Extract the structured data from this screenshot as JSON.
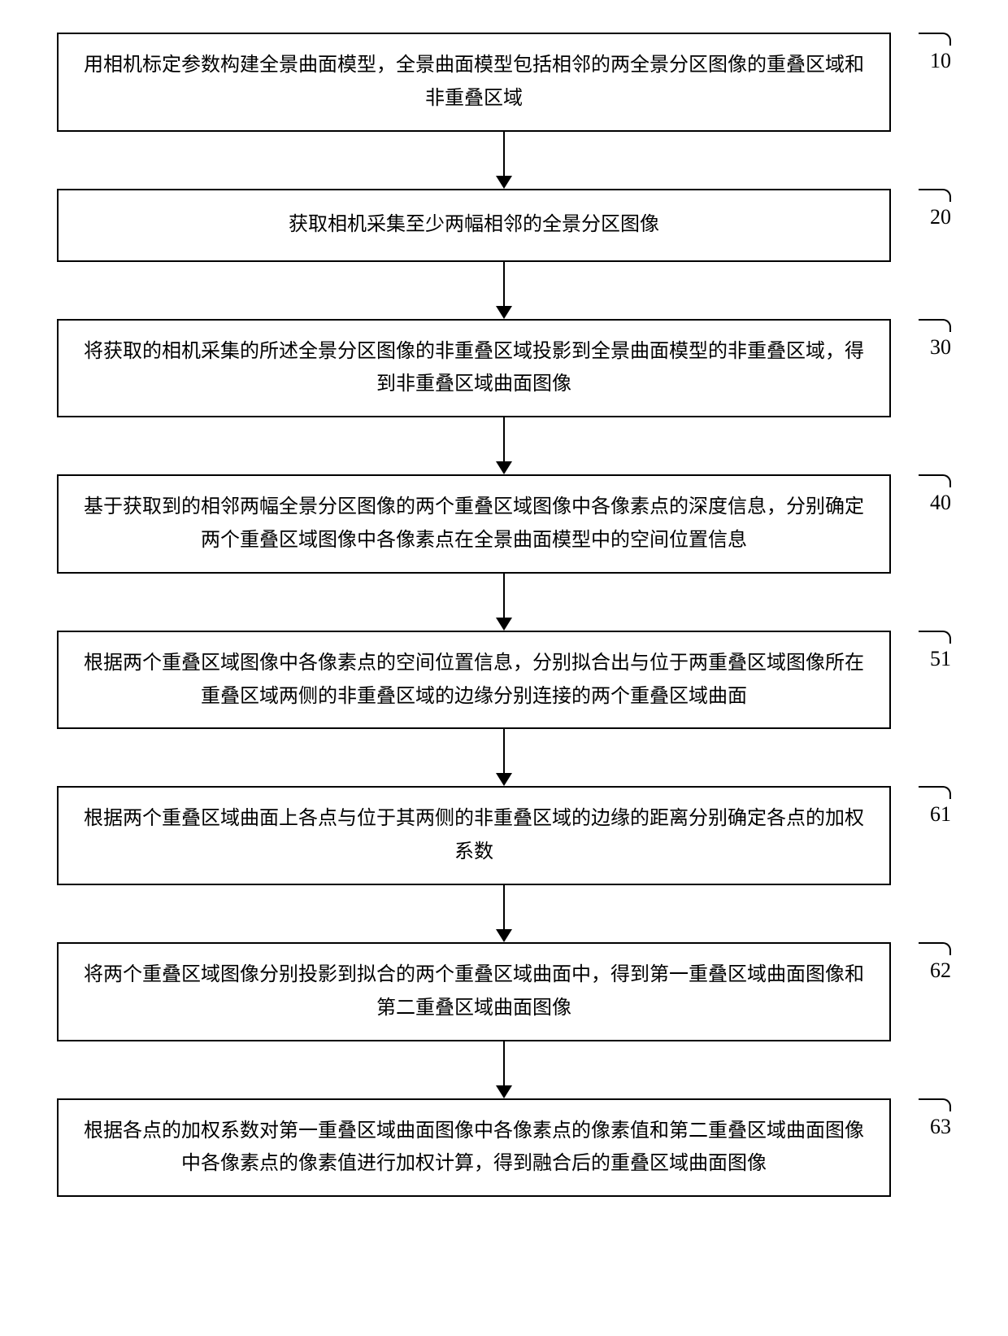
{
  "flowchart": {
    "type": "flowchart",
    "background_color": "#ffffff",
    "border_color": "#000000",
    "text_color": "#000000",
    "font_size_box": 24,
    "font_size_label": 26,
    "box_border_width": 2,
    "arrow_color": "#000000",
    "steps": [
      {
        "id": "10",
        "text": "用相机标定参数构建全景曲面模型，全景曲面模型包括相邻的两全景分区图像的重叠区域和非重叠区域"
      },
      {
        "id": "20",
        "text": "获取相机采集至少两幅相邻的全景分区图像"
      },
      {
        "id": "30",
        "text": "将获取的相机采集的所述全景分区图像的非重叠区域投影到全景曲面模型的非重叠区域，得到非重叠区域曲面图像"
      },
      {
        "id": "40",
        "text": "基于获取到的相邻两幅全景分区图像的两个重叠区域图像中各像素点的深度信息，分别确定两个重叠区域图像中各像素点在全景曲面模型中的空间位置信息"
      },
      {
        "id": "51",
        "text": "根据两个重叠区域图像中各像素点的空间位置信息，分别拟合出与位于两重叠区域图像所在重叠区域两侧的非重叠区域的边缘分别连接的两个重叠区域曲面"
      },
      {
        "id": "61",
        "text": "根据两个重叠区域曲面上各点与位于其两侧的非重叠区域的边缘的距离分别确定各点的加权系数"
      },
      {
        "id": "62",
        "text": "将两个重叠区域图像分别投影到拟合的两个重叠区域曲面中，得到第一重叠区域曲面图像和第二重叠区域曲面图像"
      },
      {
        "id": "63",
        "text": "根据各点的加权系数对第一重叠区域曲面图像中各像素点的像素值和第二重叠区域曲面图像中各像素点的像素值进行加权计算，得到融合后的重叠区域曲面图像"
      }
    ]
  }
}
